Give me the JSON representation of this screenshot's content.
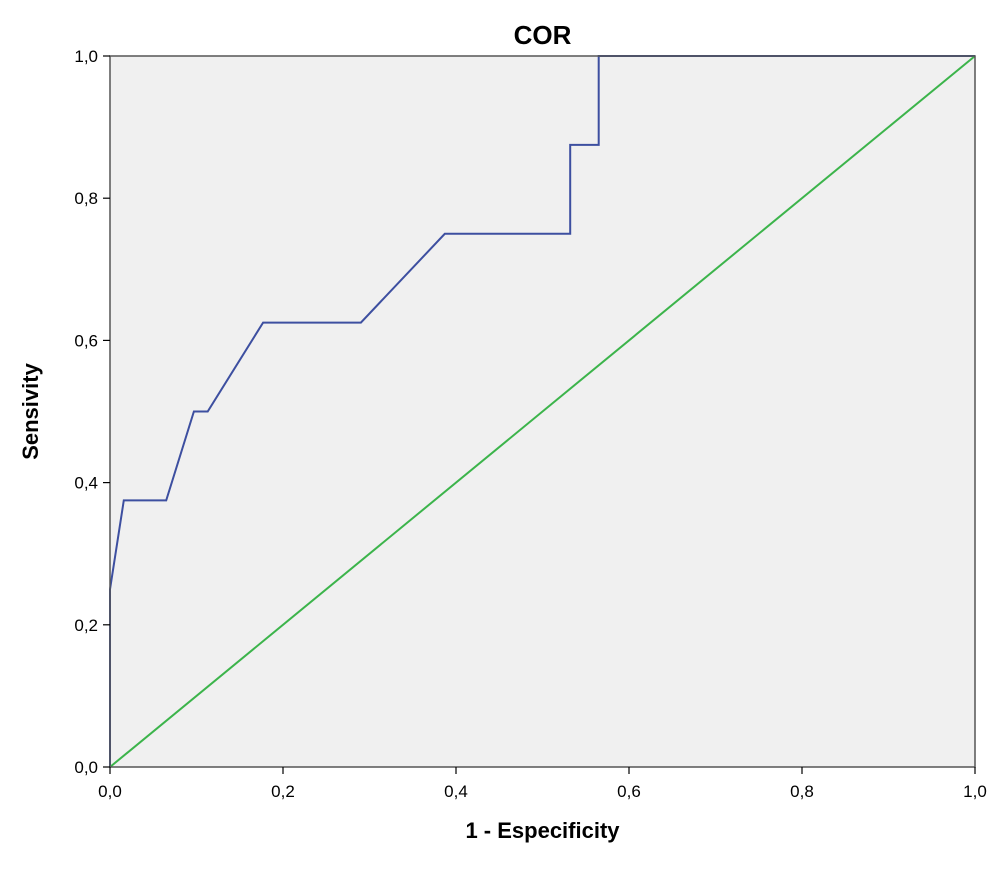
{
  "chart_data": {
    "type": "line",
    "title": "COR",
    "xlabel": "1 - Especificity",
    "ylabel": "Sensivity",
    "xlim": [
      0,
      1
    ],
    "ylim": [
      0,
      1
    ],
    "x_ticks": [
      "0,0",
      "0,2",
      "0,4",
      "0,6",
      "0,8",
      "1,0"
    ],
    "y_ticks": [
      "0,0",
      "0,2",
      "0,4",
      "0,6",
      "0,8",
      "1,0"
    ],
    "grid": false,
    "legend": "none",
    "plot_background": "#f0f0f0",
    "series": [
      {
        "color": "#3d4fa0",
        "x": [
          0,
          0,
          0.016,
          0.065,
          0.097,
          0.113,
          0.177,
          0.29,
          0.387,
          0.532,
          0.532,
          0.565,
          0.565,
          1.0
        ],
        "y": [
          0,
          0.25,
          0.375,
          0.375,
          0.5,
          0.5,
          0.625,
          0.625,
          0.75,
          0.75,
          0.875,
          0.875,
          1.0,
          1.0
        ]
      },
      {
        "color": "#3cb44b",
        "x": [
          0,
          1
        ],
        "y": [
          0,
          1
        ]
      }
    ]
  }
}
